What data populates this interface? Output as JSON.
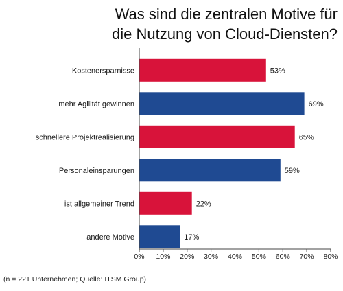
{
  "chart_data": {
    "type": "bar",
    "orientation": "horizontal",
    "title_lines": [
      "Was sind die zentralen Motive für",
      "die Nutzung von Cloud-Diensten?"
    ],
    "categories": [
      "Kostenersparnisse",
      "mehr Agilität gewinnen",
      "schnellere Projektrealisierung",
      "Personaleinsparungen",
      "ist allgemeiner Trend",
      "andere Motive"
    ],
    "values": [
      53,
      69,
      65,
      59,
      22,
      17
    ],
    "value_labels": [
      "53%",
      "69%",
      "65%",
      "59%",
      "22%",
      "17%"
    ],
    "bar_colors": [
      "#d8133a",
      "#1f4a92",
      "#d8133a",
      "#1f4a92",
      "#d8133a",
      "#1f4a92"
    ],
    "xlim": [
      0,
      80
    ],
    "x_ticks": [
      "0%",
      "10%",
      "20%",
      "30%",
      "40%",
      "50%",
      "60%",
      "70%",
      "80%"
    ],
    "grid": false,
    "legend": "none",
    "footnote": "(n = 221 Unternehmen; Quelle: ITSM Group)"
  }
}
